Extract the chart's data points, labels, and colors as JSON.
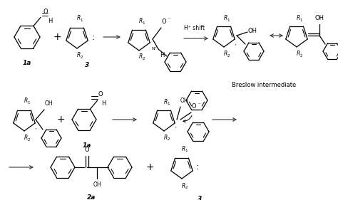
{
  "background_color": "#ffffff",
  "text_color": "#000000",
  "figure_width": 4.74,
  "figure_height": 2.81,
  "dpi": 100,
  "breslow_label": "Breslow intermediate",
  "hshift_label": "H+ shift",
  "label_1a": "1a",
  "label_3": "3",
  "label_2a": "2a"
}
